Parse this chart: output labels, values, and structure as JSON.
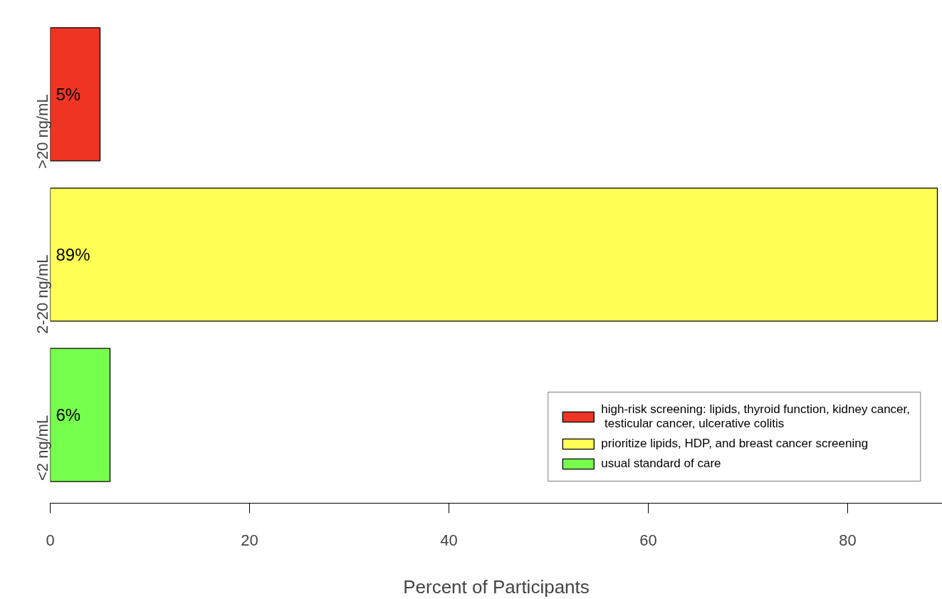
{
  "chart_data": {
    "type": "bar",
    "orientation": "horizontal",
    "categories": [
      ">20 ng/mL",
      "2-20 ng/mL",
      "<2 ng/mL"
    ],
    "series": [
      {
        "name": "high-risk screening: lipids, thyroid function, kidney cancer,\n testicular cancer, ulcerative colitis",
        "color": "#ee3524",
        "values": [
          5,
          null,
          null
        ],
        "value_labels": [
          "5%",
          null,
          null
        ]
      },
      {
        "name": "prioritize lipids, HDP, and breast cancer screening",
        "color": "#ffff55",
        "values": [
          null,
          89,
          null
        ],
        "value_labels": [
          null,
          "89%",
          null
        ]
      },
      {
        "name": "usual standard of care",
        "color": "#77ff4d",
        "values": [
          null,
          null,
          6
        ],
        "value_labels": [
          null,
          null,
          "6%"
        ]
      }
    ],
    "xlim": [
      0,
      89.5
    ],
    "xticks": [
      0,
      20,
      40,
      60,
      80
    ],
    "xlabel": "Percent of Participants",
    "grid": false,
    "legend": "bottom right"
  }
}
